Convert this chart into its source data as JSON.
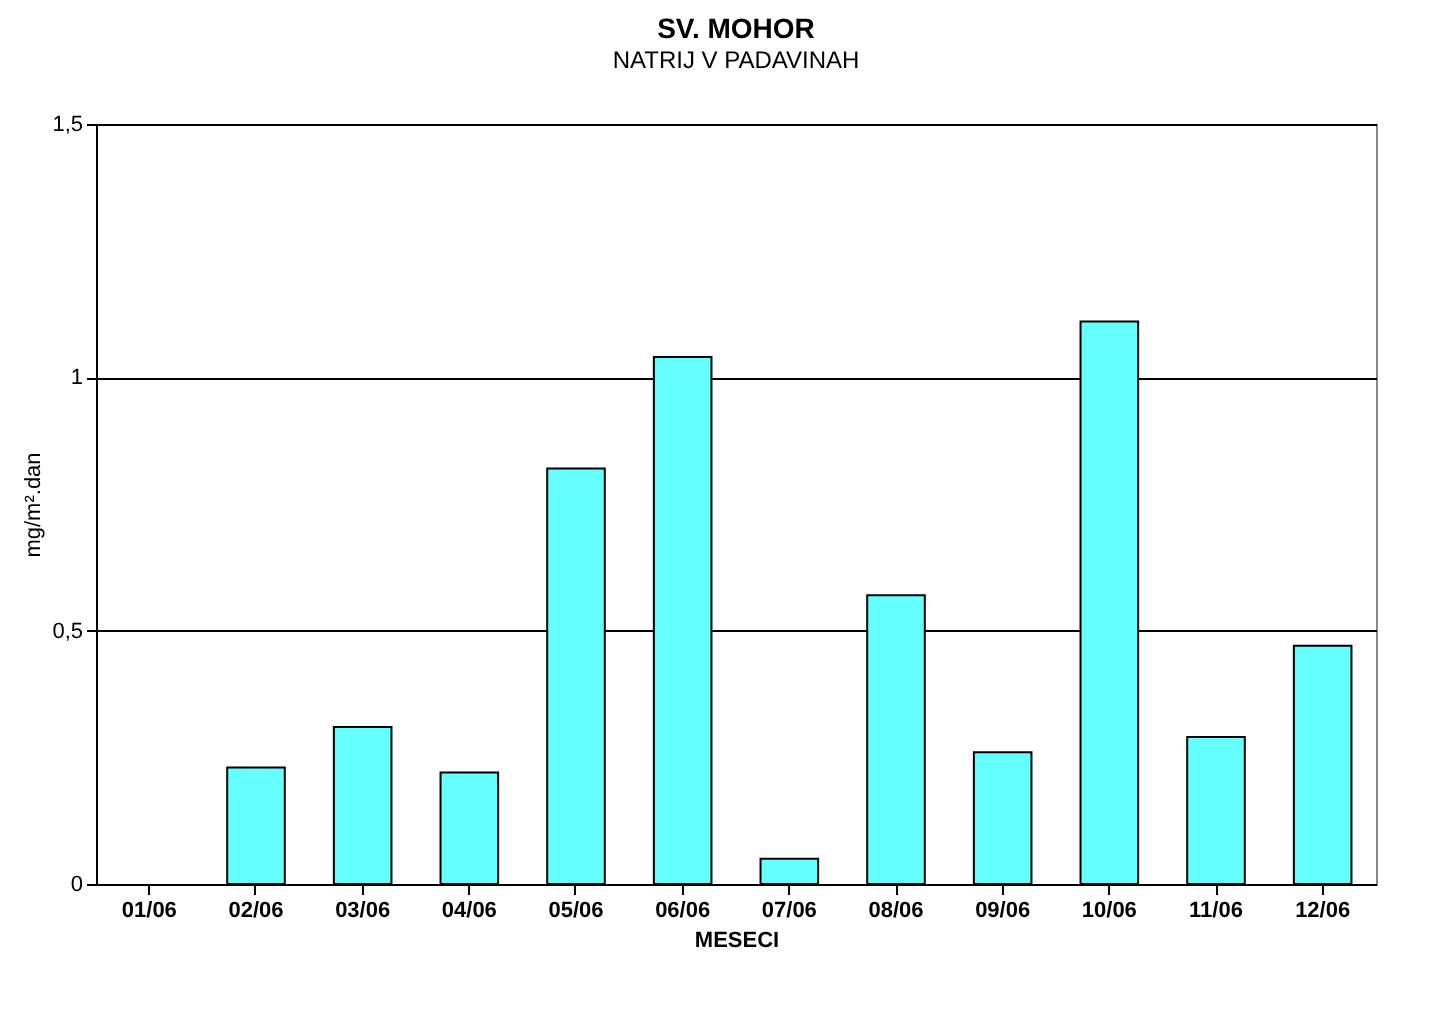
{
  "chart_data": {
    "type": "bar",
    "title": "SV. MOHOR",
    "subtitle": "NATRIJ V PADAVINAH",
    "xlabel": "MESECI",
    "ylabel": "mg/m².dan",
    "categories": [
      "01/06",
      "02/06",
      "03/06",
      "04/06",
      "05/06",
      "06/06",
      "07/06",
      "08/06",
      "09/06",
      "10/06",
      "11/06",
      "12/06"
    ],
    "values": [
      null,
      0.23,
      0.31,
      0.22,
      0.82,
      1.04,
      0.05,
      0.57,
      0.26,
      1.11,
      0.29,
      0.47
    ],
    "color": "#66ffff",
    "ylim": [
      0,
      1.5
    ],
    "yticks": [
      0,
      {
        "value": 0.5,
        "label": "0,5"
      },
      1,
      {
        "value": 1.5,
        "label": "1,5"
      }
    ],
    "grid": "y"
  }
}
